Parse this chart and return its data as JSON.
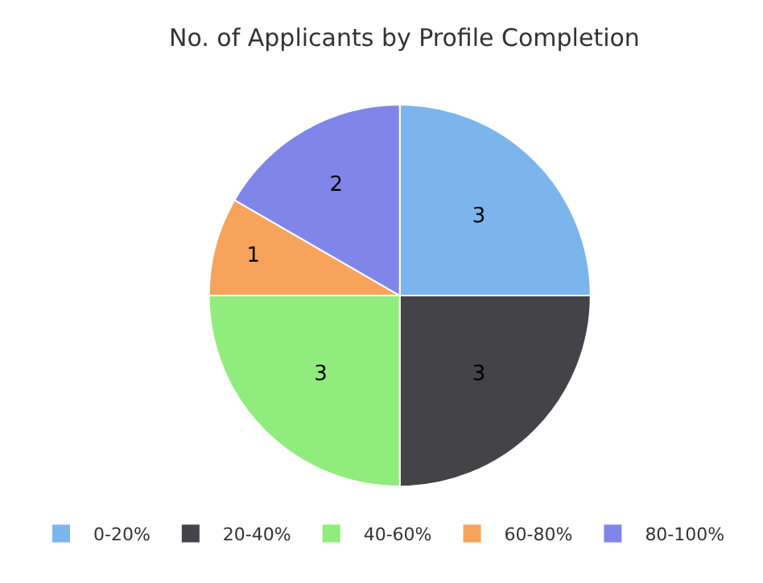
{
  "chart_data": {
    "type": "pie",
    "title": "No. of Applicants by Profile Completion",
    "categories": [
      "0-20%",
      "20-40%",
      "40-60%",
      "60-80%",
      "80-100%"
    ],
    "values": [
      3,
      3,
      3,
      1,
      2
    ],
    "colors": [
      "#7cb5ec",
      "#434348",
      "#90ed7d",
      "#f7a35c",
      "#8085e9"
    ],
    "data_labels": true,
    "legend": "bottom"
  }
}
